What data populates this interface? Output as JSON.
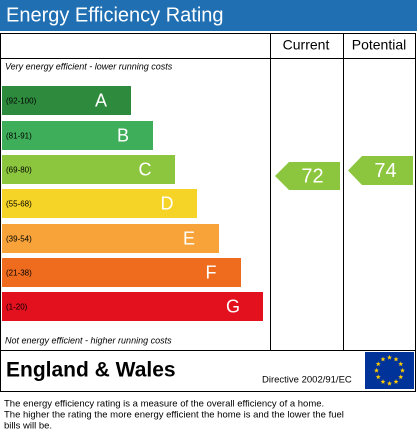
{
  "header": {
    "title": "Energy Efficiency Rating"
  },
  "table": {
    "columns": [
      "Current",
      "Potential"
    ],
    "top_note": "Very energy efficient - lower running costs",
    "bottom_note": "Not energy efficient - higher running costs",
    "bands": [
      {
        "range": "(92-100)",
        "letter": "A",
        "color": "#2e8b3e"
      },
      {
        "range": "(81-91)",
        "letter": "B",
        "color": "#3fae5a"
      },
      {
        "range": "(69-80)",
        "letter": "C",
        "color": "#8cc63f"
      },
      {
        "range": "(55-68)",
        "letter": "D",
        "color": "#f5d327"
      },
      {
        "range": "(39-54)",
        "letter": "E",
        "color": "#f7a33a"
      },
      {
        "range": "(21-38)",
        "letter": "F",
        "color": "#ef6c1f"
      },
      {
        "range": "(1-20)",
        "letter": "G",
        "color": "#e3101e"
      }
    ],
    "current": {
      "value": 72,
      "color": "#8cc63f"
    },
    "potential": {
      "value": 74,
      "color": "#8cc63f"
    }
  },
  "footer": {
    "region": "England & Wales",
    "directive": "Directive 2002/91/EC"
  },
  "description": [
    "The energy efficiency rating is a measure of the overall efficiency of a home.",
    "The higher the rating the more energy efficient the home is and the lower the fuel",
    "bills will be."
  ]
}
